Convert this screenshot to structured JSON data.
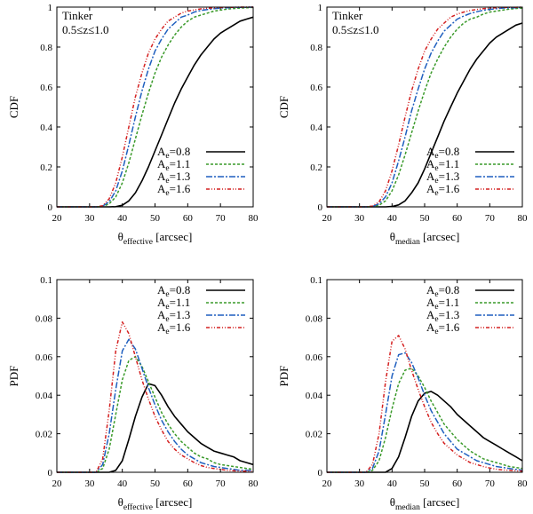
{
  "chart_data": [
    {
      "type": "line",
      "position": "top-left",
      "ylabel": "CDF",
      "xlabel": {
        "symbol": "θ",
        "subscript": "effective",
        "unit": "[arcsec]"
      },
      "annotation": [
        "Tinker",
        "0.5≤z≤1.0"
      ],
      "annotation_placement": "top-left",
      "legend_placement": "bottom-right",
      "xlim": [
        20,
        80
      ],
      "ylim": [
        0,
        1
      ],
      "xticks": [
        20,
        30,
        40,
        50,
        60,
        70,
        80
      ],
      "yticks": [
        "0",
        "0.2",
        "0.4",
        "0.6",
        "0.8",
        "1"
      ],
      "x": [
        20,
        30,
        32,
        34,
        36,
        38,
        40,
        42,
        44,
        46,
        48,
        50,
        52,
        54,
        56,
        58,
        60,
        62,
        64,
        66,
        68,
        70,
        72,
        74,
        76,
        78,
        80
      ],
      "series": [
        {
          "name": "Ae=0.8",
          "label_main": "A",
          "label_sub": "e",
          "label_value": "=0.8",
          "color": "#000000",
          "dash": "",
          "values": [
            0,
            0,
            0,
            0,
            0,
            0.001,
            0.008,
            0.03,
            0.07,
            0.13,
            0.2,
            0.28,
            0.36,
            0.44,
            0.52,
            0.59,
            0.65,
            0.71,
            0.76,
            0.8,
            0.84,
            0.87,
            0.89,
            0.91,
            0.93,
            0.94,
            0.95
          ]
        },
        {
          "name": "Ae=1.1",
          "label_main": "A",
          "label_sub": "e",
          "label_value": "=1.1",
          "color": "#3a9a2a",
          "dash": "3,2",
          "values": [
            0,
            0,
            0,
            0.002,
            0.015,
            0.05,
            0.12,
            0.22,
            0.34,
            0.46,
            0.57,
            0.67,
            0.75,
            0.81,
            0.86,
            0.9,
            0.93,
            0.95,
            0.96,
            0.97,
            0.98,
            0.985,
            0.99,
            0.993,
            0.995,
            0.997,
            0.998
          ]
        },
        {
          "name": "Ae=1.3",
          "label_main": "A",
          "label_sub": "e",
          "label_value": "=1.3",
          "color": "#1f5fbf",
          "dash": "7,2,2,2",
          "values": [
            0,
            0,
            0,
            0.004,
            0.025,
            0.08,
            0.18,
            0.31,
            0.45,
            0.58,
            0.69,
            0.78,
            0.84,
            0.89,
            0.92,
            0.95,
            0.96,
            0.975,
            0.983,
            0.988,
            0.992,
            0.995,
            0.997,
            0.998,
            0.999,
            0.999,
            1.0
          ]
        },
        {
          "name": "Ae=1.6",
          "label_main": "A",
          "label_sub": "e",
          "label_value": "=1.6",
          "color": "#d42020",
          "dash": "4,2,1,2,1,2",
          "values": [
            0,
            0,
            0,
            0.006,
            0.04,
            0.12,
            0.25,
            0.4,
            0.55,
            0.67,
            0.77,
            0.84,
            0.89,
            0.93,
            0.95,
            0.97,
            0.98,
            0.986,
            0.991,
            0.994,
            0.996,
            0.998,
            0.999,
            0.999,
            1.0,
            1.0,
            1.0
          ]
        }
      ]
    },
    {
      "type": "line",
      "position": "top-right",
      "ylabel": "CDF",
      "xlabel": {
        "symbol": "θ",
        "subscript": "median",
        "unit": "[arcsec]"
      },
      "annotation": [
        "Tinker",
        "0.5≤z≤1.0"
      ],
      "annotation_placement": "top-left",
      "legend_placement": "bottom-right",
      "xlim": [
        20,
        80
      ],
      "ylim": [
        0,
        1
      ],
      "xticks": [
        20,
        30,
        40,
        50,
        60,
        70,
        80
      ],
      "yticks": [
        "0",
        "0.2",
        "0.4",
        "0.6",
        "0.8",
        "1"
      ],
      "x": [
        20,
        30,
        32,
        34,
        36,
        38,
        40,
        42,
        44,
        46,
        48,
        50,
        52,
        54,
        56,
        58,
        60,
        62,
        64,
        66,
        68,
        70,
        72,
        74,
        76,
        78,
        80
      ],
      "series": [
        {
          "name": "Ae=0.8",
          "label_main": "A",
          "label_sub": "e",
          "label_value": "=0.8",
          "color": "#000000",
          "dash": "",
          "values": [
            0,
            0,
            0,
            0,
            0,
            0,
            0.002,
            0.01,
            0.03,
            0.07,
            0.12,
            0.19,
            0.27,
            0.35,
            0.43,
            0.5,
            0.57,
            0.63,
            0.69,
            0.74,
            0.78,
            0.82,
            0.85,
            0.87,
            0.89,
            0.91,
            0.92
          ]
        },
        {
          "name": "Ae=1.1",
          "label_main": "A",
          "label_sub": "e",
          "label_value": "=1.1",
          "color": "#3a9a2a",
          "dash": "3,2",
          "values": [
            0,
            0,
            0,
            0.001,
            0.008,
            0.03,
            0.08,
            0.16,
            0.26,
            0.37,
            0.48,
            0.58,
            0.67,
            0.74,
            0.8,
            0.85,
            0.89,
            0.92,
            0.94,
            0.95,
            0.965,
            0.975,
            0.98,
            0.985,
            0.99,
            0.993,
            0.995
          ]
        },
        {
          "name": "Ae=1.3",
          "label_main": "A",
          "label_sub": "e",
          "label_value": "=1.3",
          "color": "#1f5fbf",
          "dash": "7,2,2,2",
          "values": [
            0,
            0,
            0,
            0.002,
            0.015,
            0.05,
            0.12,
            0.23,
            0.35,
            0.48,
            0.59,
            0.69,
            0.77,
            0.83,
            0.88,
            0.91,
            0.94,
            0.955,
            0.968,
            0.977,
            0.984,
            0.989,
            0.992,
            0.995,
            0.996,
            0.997,
            0.998
          ]
        },
        {
          "name": "Ae=1.6",
          "label_main": "A",
          "label_sub": "e",
          "label_value": "=1.6",
          "color": "#d42020",
          "dash": "4,2,1,2,1,2",
          "values": [
            0,
            0,
            0,
            0.004,
            0.025,
            0.08,
            0.18,
            0.31,
            0.45,
            0.58,
            0.69,
            0.78,
            0.84,
            0.89,
            0.92,
            0.95,
            0.965,
            0.975,
            0.983,
            0.988,
            0.992,
            0.995,
            0.997,
            0.998,
            0.999,
            0.999,
            1.0
          ]
        }
      ]
    },
    {
      "type": "line",
      "position": "bottom-left",
      "ylabel": "PDF",
      "xlabel": {
        "symbol": "θ",
        "subscript": "effective",
        "unit": "[arcsec]"
      },
      "annotation": [],
      "legend_placement": "top-right",
      "xlim": [
        20,
        80
      ],
      "ylim": [
        0,
        0.1
      ],
      "xticks": [
        20,
        30,
        40,
        50,
        60,
        70,
        80
      ],
      "yticks": [
        "0",
        "0.02",
        "0.04",
        "0.06",
        "0.08",
        "0.1"
      ],
      "x": [
        20,
        30,
        32,
        34,
        36,
        38,
        40,
        42,
        44,
        46,
        48,
        50,
        52,
        54,
        56,
        58,
        60,
        62,
        64,
        66,
        68,
        70,
        72,
        74,
        76,
        78,
        80
      ],
      "series": [
        {
          "name": "Ae=0.8",
          "label_main": "A",
          "label_sub": "e",
          "label_value": "=0.8",
          "color": "#000000",
          "dash": "",
          "values": [
            0,
            0,
            0,
            0,
            0,
            0.001,
            0.006,
            0.017,
            0.029,
            0.039,
            0.046,
            0.045,
            0.04,
            0.034,
            0.029,
            0.025,
            0.021,
            0.018,
            0.015,
            0.013,
            0.011,
            0.01,
            0.009,
            0.008,
            0.006,
            0.005,
            0.004
          ]
        },
        {
          "name": "Ae=1.1",
          "label_main": "A",
          "label_sub": "e",
          "label_value": "=1.1",
          "color": "#3a9a2a",
          "dash": "3,2",
          "values": [
            0,
            0,
            0,
            0.002,
            0.012,
            0.03,
            0.048,
            0.058,
            0.06,
            0.055,
            0.047,
            0.039,
            0.031,
            0.025,
            0.02,
            0.016,
            0.013,
            0.01,
            0.008,
            0.007,
            0.005,
            0.004,
            0.0035,
            0.003,
            0.0025,
            0.002,
            0.0015
          ]
        },
        {
          "name": "Ae=1.3",
          "label_main": "A",
          "label_sub": "e",
          "label_value": "=1.3",
          "color": "#1f5fbf",
          "dash": "7,2,2,2",
          "values": [
            0,
            0,
            0,
            0.004,
            0.02,
            0.043,
            0.063,
            0.069,
            0.064,
            0.054,
            0.044,
            0.035,
            0.027,
            0.021,
            0.016,
            0.012,
            0.009,
            0.007,
            0.005,
            0.004,
            0.003,
            0.0025,
            0.002,
            0.0015,
            0.001,
            0.001,
            0.0008
          ]
        },
        {
          "name": "Ae=1.6",
          "label_main": "A",
          "label_sub": "e",
          "label_value": "=1.6",
          "color": "#d42020",
          "dash": "4,2,1,2,1,2",
          "values": [
            0,
            0,
            0,
            0.007,
            0.032,
            0.063,
            0.078,
            0.072,
            0.06,
            0.048,
            0.038,
            0.029,
            0.022,
            0.016,
            0.012,
            0.009,
            0.007,
            0.005,
            0.0035,
            0.0025,
            0.002,
            0.0015,
            0.001,
            0.0008,
            0.0006,
            0.0005,
            0.0004
          ]
        }
      ]
    },
    {
      "type": "line",
      "position": "bottom-right",
      "ylabel": "PDF",
      "xlabel": {
        "symbol": "θ",
        "subscript": "median",
        "unit": "[arcsec]"
      },
      "annotation": [],
      "legend_placement": "top-right",
      "xlim": [
        20,
        80
      ],
      "ylim": [
        0,
        0.1
      ],
      "xticks": [
        20,
        30,
        40,
        50,
        60,
        70,
        80
      ],
      "yticks": [
        "0",
        "0.02",
        "0.04",
        "0.06",
        "0.08",
        "0.1"
      ],
      "x": [
        20,
        30,
        32,
        34,
        36,
        38,
        40,
        42,
        44,
        46,
        48,
        50,
        52,
        54,
        56,
        58,
        60,
        62,
        64,
        66,
        68,
        70,
        72,
        74,
        76,
        78,
        80
      ],
      "series": [
        {
          "name": "Ae=0.8",
          "label_main": "A",
          "label_sub": "e",
          "label_value": "=0.8",
          "color": "#000000",
          "dash": "",
          "values": [
            0,
            0,
            0,
            0,
            0,
            0,
            0.002,
            0.008,
            0.018,
            0.029,
            0.037,
            0.041,
            0.042,
            0.04,
            0.037,
            0.034,
            0.03,
            0.027,
            0.024,
            0.021,
            0.018,
            0.016,
            0.014,
            0.012,
            0.01,
            0.008,
            0.006
          ]
        },
        {
          "name": "Ae=1.1",
          "label_main": "A",
          "label_sub": "e",
          "label_value": "=1.1",
          "color": "#3a9a2a",
          "dash": "3,2",
          "values": [
            0,
            0,
            0,
            0.001,
            0.006,
            0.018,
            0.033,
            0.046,
            0.053,
            0.054,
            0.05,
            0.044,
            0.037,
            0.031,
            0.025,
            0.021,
            0.017,
            0.014,
            0.011,
            0.009,
            0.007,
            0.006,
            0.005,
            0.004,
            0.003,
            0.0025,
            0.002
          ]
        },
        {
          "name": "Ae=1.3",
          "label_main": "A",
          "label_sub": "e",
          "label_value": "=1.3",
          "color": "#1f5fbf",
          "dash": "7,2,2,2",
          "values": [
            0,
            0,
            0,
            0.002,
            0.011,
            0.03,
            0.05,
            0.061,
            0.062,
            0.057,
            0.049,
            0.04,
            0.032,
            0.026,
            0.02,
            0.016,
            0.012,
            0.01,
            0.008,
            0.006,
            0.005,
            0.004,
            0.003,
            0.0025,
            0.002,
            0.0015,
            0.001
          ]
        },
        {
          "name": "Ae=1.6",
          "label_main": "A",
          "label_sub": "e",
          "label_value": "=1.6",
          "color": "#d42020",
          "dash": "4,2,1,2,1,2",
          "values": [
            0,
            0,
            0,
            0.004,
            0.02,
            0.047,
            0.068,
            0.071,
            0.064,
            0.053,
            0.043,
            0.034,
            0.026,
            0.02,
            0.015,
            0.012,
            0.009,
            0.007,
            0.005,
            0.004,
            0.003,
            0.0022,
            0.0016,
            0.0012,
            0.001,
            0.0008,
            0.0006
          ]
        }
      ]
    }
  ]
}
